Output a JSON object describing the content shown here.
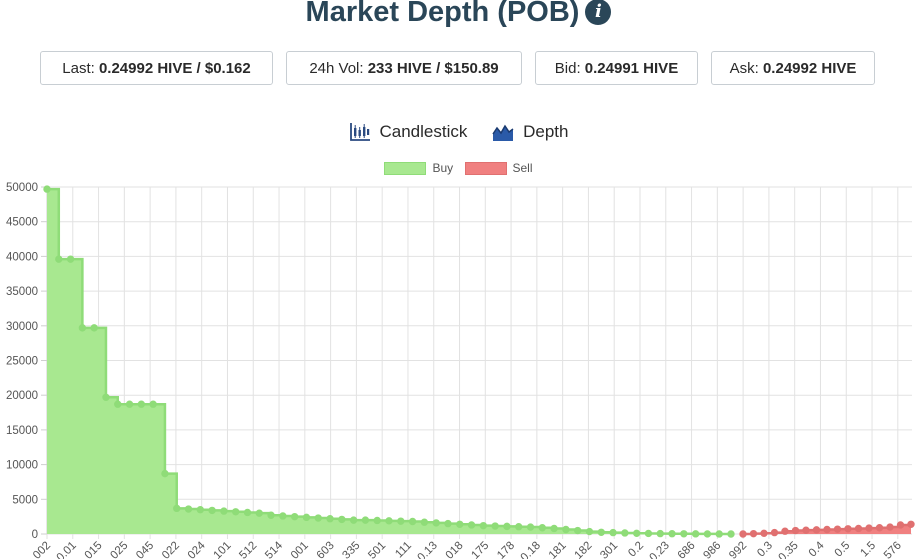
{
  "title": "Market Depth (POB)",
  "info_icon": "info-circle-icon",
  "stats": [
    {
      "label": "Last: ",
      "value": "0.24992 HIVE / $0.162"
    },
    {
      "label": "24h Vol: ",
      "value": "233 HIVE / $150.89"
    },
    {
      "label": "Bid: ",
      "value": "0.24991 HIVE"
    },
    {
      "label": "Ask: ",
      "value": "0.24992 HIVE"
    }
  ],
  "tabs": [
    {
      "label": "Candlestick",
      "icon": "candlestick-icon"
    },
    {
      "label": "Depth",
      "icon": "depth-chart-icon"
    }
  ],
  "colors": {
    "buy_fill": "#a8e890",
    "buy_line": "#8fdc78",
    "sell_fill": "#f08080",
    "sell_line": "#e07070",
    "title": "#2a4658"
  },
  "chart_data": {
    "type": "area",
    "stepped": true,
    "ylim": [
      0,
      50000
    ],
    "yticks": [
      0,
      5000,
      10000,
      15000,
      20000,
      25000,
      30000,
      35000,
      40000,
      45000,
      50000
    ],
    "x_tick_labels": [
      "002",
      "0.01",
      "015",
      "025",
      "045",
      "022",
      "024",
      "101",
      "512",
      "514",
      "001",
      "603",
      "335",
      "501",
      "111",
      "0.13",
      "018",
      "175",
      "178",
      "0.18",
      "181",
      "182",
      "301",
      "0.2",
      "0.23",
      "686",
      "986",
      "992",
      "0.3",
      "0.35",
      "0.4",
      "0.5",
      "1.5",
      "576"
    ],
    "grid": true,
    "legend_position": "top",
    "series": [
      {
        "name": "Buy",
        "values": [
          49700,
          39600,
          39600,
          29700,
          29700,
          19700,
          18700,
          18700,
          18700,
          18700,
          8700,
          3700,
          3600,
          3500,
          3400,
          3300,
          3200,
          3100,
          3000,
          2700,
          2600,
          2500,
          2400,
          2300,
          2200,
          2100,
          2000,
          2000,
          1950,
          1900,
          1850,
          1800,
          1700,
          1600,
          1500,
          1400,
          1300,
          1200,
          1150,
          1100,
          1050,
          1000,
          900,
          800,
          650,
          500,
          350,
          250,
          200,
          150,
          100,
          80,
          60,
          40,
          30,
          20,
          10,
          5,
          0
        ]
      },
      {
        "name": "Sell",
        "values": [
          0,
          50,
          100,
          200,
          400,
          500,
          550,
          600,
          650,
          700,
          750,
          800,
          850,
          900,
          1000,
          1300,
          1400
        ]
      }
    ]
  }
}
